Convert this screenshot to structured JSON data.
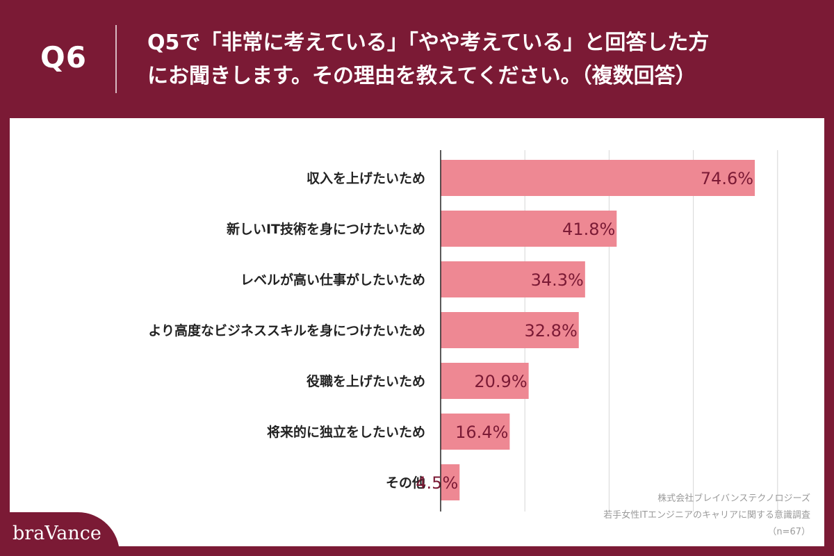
{
  "header": {
    "question_number": "Q6",
    "title_line1": "Q5で「非常に考えている」「やや考えている」と回答した方",
    "title_line2": "にお聞きします。その理由を教えてください。（複数回答）"
  },
  "chart_data": {
    "type": "bar",
    "orientation": "horizontal",
    "categories": [
      "収入を上げたいため",
      "新しいIT技術を身につけたいため",
      "レベルが高い仕事がしたいため",
      "より高度なビジネススキルを身につけたいため",
      "役職を上げたいため",
      "将来的に独立をしたいため",
      "その他"
    ],
    "values": [
      74.6,
      41.8,
      34.3,
      32.8,
      20.9,
      16.4,
      4.5
    ],
    "value_labels": [
      "74.6%",
      "41.8%",
      "34.3%",
      "32.8%",
      "20.9%",
      "16.4%",
      "4.5%"
    ],
    "xlim": [
      0,
      80
    ],
    "grid": true,
    "bar_color": "#ee8893",
    "label_color": "#7b1a35"
  },
  "credit": {
    "line1": "株式会社ブレイバンステクノロジーズ",
    "line2": "若手女性ITエンジニアのキャリアに関する意識調査",
    "line3": "（n=67）"
  },
  "logo": {
    "text": "braVance"
  }
}
